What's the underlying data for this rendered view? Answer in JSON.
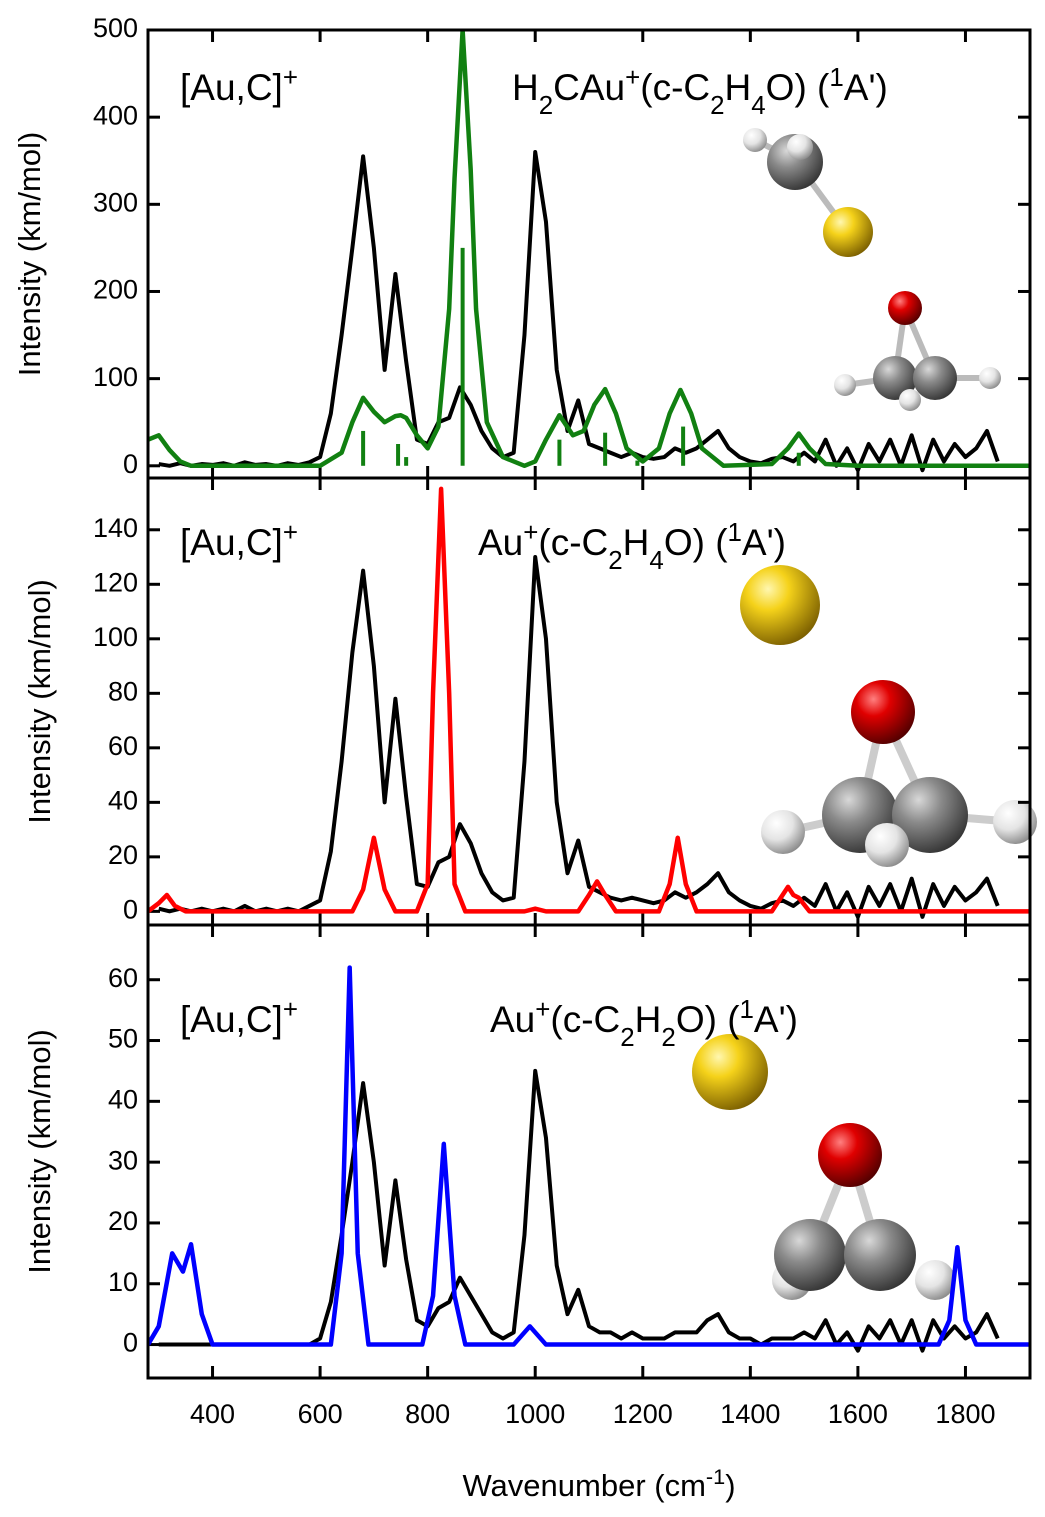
{
  "chart_data": [
    {
      "type": "line",
      "ylabel": "Intensity (km/mol)",
      "xlim": [
        280,
        1920
      ],
      "ylim": [
        -14,
        500
      ],
      "xticks": [
        400,
        600,
        800,
        1000,
        1200,
        1400,
        1600,
        1800
      ],
      "yticks": [
        0,
        100,
        200,
        300,
        400,
        500
      ],
      "show_xticklabels": false,
      "series": [
        {
          "name": [
            {
              "t": "[Au,C]"
            },
            {
              "sup": "+"
            }
          ],
          "color": "#000000",
          "x": [
            300,
            320,
            340,
            360,
            380,
            400,
            420,
            440,
            460,
            480,
            500,
            520,
            540,
            560,
            580,
            600,
            620,
            640,
            660,
            680,
            700,
            720,
            740,
            760,
            780,
            800,
            820,
            840,
            860,
            880,
            900,
            920,
            940,
            960,
            980,
            1000,
            1020,
            1040,
            1060,
            1080,
            1100,
            1120,
            1140,
            1160,
            1180,
            1200,
            1220,
            1240,
            1260,
            1280,
            1300,
            1320,
            1340,
            1360,
            1380,
            1400,
            1420,
            1440,
            1460,
            1480,
            1500,
            1520,
            1540,
            1560,
            1580,
            1600,
            1620,
            1640,
            1660,
            1680,
            1700,
            1720,
            1740,
            1760,
            1780,
            1800,
            1820,
            1840,
            1860
          ],
          "values": [
            2,
            0,
            3,
            0,
            2,
            1,
            3,
            0,
            4,
            1,
            2,
            0,
            3,
            1,
            4,
            10,
            60,
            150,
            250,
            355,
            250,
            110,
            220,
            120,
            30,
            25,
            50,
            55,
            90,
            70,
            40,
            20,
            10,
            15,
            150,
            360,
            280,
            110,
            40,
            75,
            25,
            20,
            15,
            10,
            15,
            10,
            8,
            10,
            20,
            15,
            20,
            30,
            40,
            20,
            10,
            5,
            3,
            8,
            10,
            5,
            15,
            5,
            30,
            0,
            20,
            -5,
            25,
            5,
            30,
            0,
            35,
            -5,
            30,
            5,
            25,
            10,
            20,
            40,
            5
          ]
        },
        {
          "name": [
            {
              "t": "H"
            },
            {
              "sub": "2"
            },
            {
              "t": "CAu"
            },
            {
              "sup": "+"
            },
            {
              "t": "(c-C"
            },
            {
              "sub": "2"
            },
            {
              "t": "H"
            },
            {
              "sub": "4"
            },
            {
              "t": "O) ("
            },
            {
              "sup": "1"
            },
            {
              "t": "A')"
            }
          ],
          "color": "#118011",
          "x": [
            280,
            300,
            320,
            340,
            360,
            600,
            640,
            660,
            680,
            700,
            720,
            740,
            750,
            760,
            780,
            800,
            820,
            840,
            850,
            865,
            880,
            890,
            910,
            940,
            980,
            1000,
            1020,
            1045,
            1070,
            1090,
            1110,
            1130,
            1150,
            1170,
            1200,
            1230,
            1250,
            1270,
            1290,
            1310,
            1350,
            1440,
            1470,
            1490,
            1510,
            1540,
            1600,
            1920
          ],
          "values": [
            30,
            35,
            18,
            5,
            0,
            0,
            15,
            50,
            78,
            62,
            50,
            57,
            58,
            55,
            35,
            20,
            45,
            180,
            330,
            500,
            340,
            180,
            50,
            10,
            0,
            5,
            30,
            58,
            35,
            40,
            70,
            88,
            60,
            20,
            5,
            20,
            60,
            87,
            60,
            20,
            0,
            2,
            20,
            37,
            20,
            2,
            0,
            0
          ],
          "sticks": {
            "x": [
              680,
              745,
              760,
              865,
              1045,
              1130,
              1190,
              1275,
              1490
            ],
            "values": [
              40,
              25,
              10,
              250,
              30,
              38,
              6,
              45,
              15
            ]
          }
        }
      ]
    },
    {
      "type": "line",
      "ylabel": "Intensity (km/mol)",
      "xlim": [
        280,
        1920
      ],
      "ylim": [
        -5,
        159
      ],
      "xticks": [
        400,
        600,
        800,
        1000,
        1200,
        1400,
        1600,
        1800
      ],
      "yticks": [
        0,
        20,
        40,
        60,
        80,
        100,
        120,
        140
      ],
      "show_xticklabels": false,
      "series": [
        {
          "name": [
            {
              "t": "[Au,C]"
            },
            {
              "sup": "+"
            }
          ],
          "color": "#000000",
          "x": [
            300,
            320,
            340,
            360,
            380,
            400,
            420,
            440,
            460,
            480,
            500,
            520,
            540,
            560,
            580,
            600,
            620,
            640,
            660,
            680,
            700,
            720,
            740,
            760,
            780,
            800,
            820,
            840,
            860,
            880,
            900,
            920,
            940,
            960,
            980,
            1000,
            1020,
            1040,
            1060,
            1080,
            1100,
            1120,
            1140,
            1160,
            1180,
            1200,
            1220,
            1240,
            1260,
            1280,
            1300,
            1320,
            1340,
            1360,
            1380,
            1400,
            1420,
            1440,
            1460,
            1480,
            1500,
            1520,
            1540,
            1560,
            1580,
            1600,
            1620,
            1640,
            1660,
            1680,
            1700,
            1720,
            1740,
            1760,
            1780,
            1800,
            1820,
            1840,
            1860
          ],
          "values": [
            1,
            0,
            1,
            0,
            1,
            0,
            1,
            0,
            2,
            0,
            1,
            0,
            1,
            0,
            2,
            4,
            22,
            55,
            95,
            125,
            90,
            40,
            78,
            42,
            10,
            9,
            18,
            20,
            32,
            25,
            14,
            7,
            4,
            5,
            55,
            130,
            100,
            40,
            14,
            26,
            9,
            7,
            5,
            4,
            5,
            4,
            3,
            4,
            7,
            5,
            7,
            10,
            14,
            7,
            4,
            2,
            1,
            3,
            4,
            2,
            5,
            2,
            10,
            0,
            7,
            -2,
            9,
            2,
            10,
            0,
            12,
            -2,
            10,
            2,
            9,
            4,
            7,
            12,
            2
          ]
        },
        {
          "name": [
            {
              "t": "Au"
            },
            {
              "sup": "+"
            },
            {
              "t": "(c-C"
            },
            {
              "sub": "2"
            },
            {
              "t": "H"
            },
            {
              "sub": "4"
            },
            {
              "t": "O) ("
            },
            {
              "sup": "1"
            },
            {
              "t": "A')"
            }
          ],
          "color": "#ff0000",
          "x": [
            280,
            300,
            315,
            330,
            350,
            660,
            680,
            700,
            720,
            740,
            780,
            800,
            810,
            825,
            840,
            850,
            870,
            980,
            1000,
            1020,
            1080,
            1100,
            1115,
            1130,
            1150,
            1230,
            1250,
            1265,
            1280,
            1300,
            1440,
            1460,
            1470,
            1480,
            1490,
            1510,
            1920
          ],
          "values": [
            0,
            3,
            6,
            2,
            0,
            0,
            8,
            27,
            8,
            0,
            0,
            10,
            80,
            155,
            80,
            10,
            0,
            0,
            1,
            0,
            0,
            6,
            11,
            6,
            0,
            0,
            10,
            27,
            10,
            0,
            0,
            6,
            9,
            6,
            5,
            0,
            0
          ]
        }
      ]
    },
    {
      "type": "line",
      "ylabel": "Intensity (km/mol)",
      "xlabel": [
        {
          "t": "Wavenumber (cm"
        },
        {
          "sup": "-1"
        },
        {
          "t": ")"
        }
      ],
      "xlim": [
        280,
        1920
      ],
      "ylim": [
        -5.5,
        69
      ],
      "xticks": [
        400,
        600,
        800,
        1000,
        1200,
        1400,
        1600,
        1800
      ],
      "yticks": [
        0,
        10,
        20,
        30,
        40,
        50,
        60
      ],
      "show_xticklabels": true,
      "series": [
        {
          "name": [
            {
              "t": "[Au,C]"
            },
            {
              "sup": "+"
            }
          ],
          "color": "#000000",
          "x": [
            300,
            320,
            340,
            360,
            380,
            400,
            420,
            440,
            460,
            480,
            500,
            520,
            540,
            560,
            580,
            600,
            620,
            640,
            660,
            680,
            700,
            720,
            740,
            760,
            780,
            800,
            820,
            840,
            860,
            880,
            900,
            920,
            940,
            960,
            980,
            1000,
            1020,
            1040,
            1060,
            1080,
            1100,
            1120,
            1140,
            1160,
            1180,
            1200,
            1220,
            1240,
            1260,
            1280,
            1300,
            1320,
            1340,
            1360,
            1380,
            1400,
            1420,
            1440,
            1460,
            1480,
            1500,
            1520,
            1540,
            1560,
            1580,
            1600,
            1620,
            1640,
            1660,
            1680,
            1700,
            1720,
            1740,
            1760,
            1780,
            1800,
            1820,
            1840,
            1860
          ],
          "values": [
            0,
            0,
            0,
            0,
            0,
            0,
            0,
            0,
            0,
            0,
            0,
            0,
            0,
            0,
            0,
            1,
            7,
            18,
            30,
            43,
            30,
            13,
            27,
            14,
            4,
            3,
            6,
            7,
            11,
            8,
            5,
            2,
            1,
            2,
            18,
            45,
            34,
            13,
            5,
            9,
            3,
            2,
            2,
            1,
            2,
            1,
            1,
            1,
            2,
            2,
            2,
            4,
            5,
            2,
            1,
            1,
            0,
            1,
            1,
            1,
            2,
            1,
            4,
            0,
            2,
            -1,
            3,
            1,
            4,
            0,
            4,
            -1,
            4,
            1,
            3,
            1,
            2,
            5,
            1
          ]
        },
        {
          "name": [
            {
              "t": "Au"
            },
            {
              "sup": "+"
            },
            {
              "t": "(c-C"
            },
            {
              "sub": "2"
            },
            {
              "t": "H"
            },
            {
              "sub": "2"
            },
            {
              "t": "O) ("
            },
            {
              "sup": "1"
            },
            {
              "t": "A')"
            }
          ],
          "color": "#0000ff",
          "x": [
            280,
            300,
            325,
            345,
            360,
            380,
            400,
            620,
            640,
            655,
            670,
            690,
            790,
            810,
            830,
            850,
            870,
            960,
            990,
            1020,
            1750,
            1770,
            1785,
            1800,
            1820,
            1920
          ],
          "values": [
            0,
            3,
            15,
            12,
            16.5,
            5,
            0,
            0,
            15,
            62,
            15,
            0,
            0,
            8,
            33,
            8,
            0,
            0,
            3,
            0,
            0,
            4,
            16,
            4,
            0,
            0
          ]
        }
      ]
    }
  ]
}
